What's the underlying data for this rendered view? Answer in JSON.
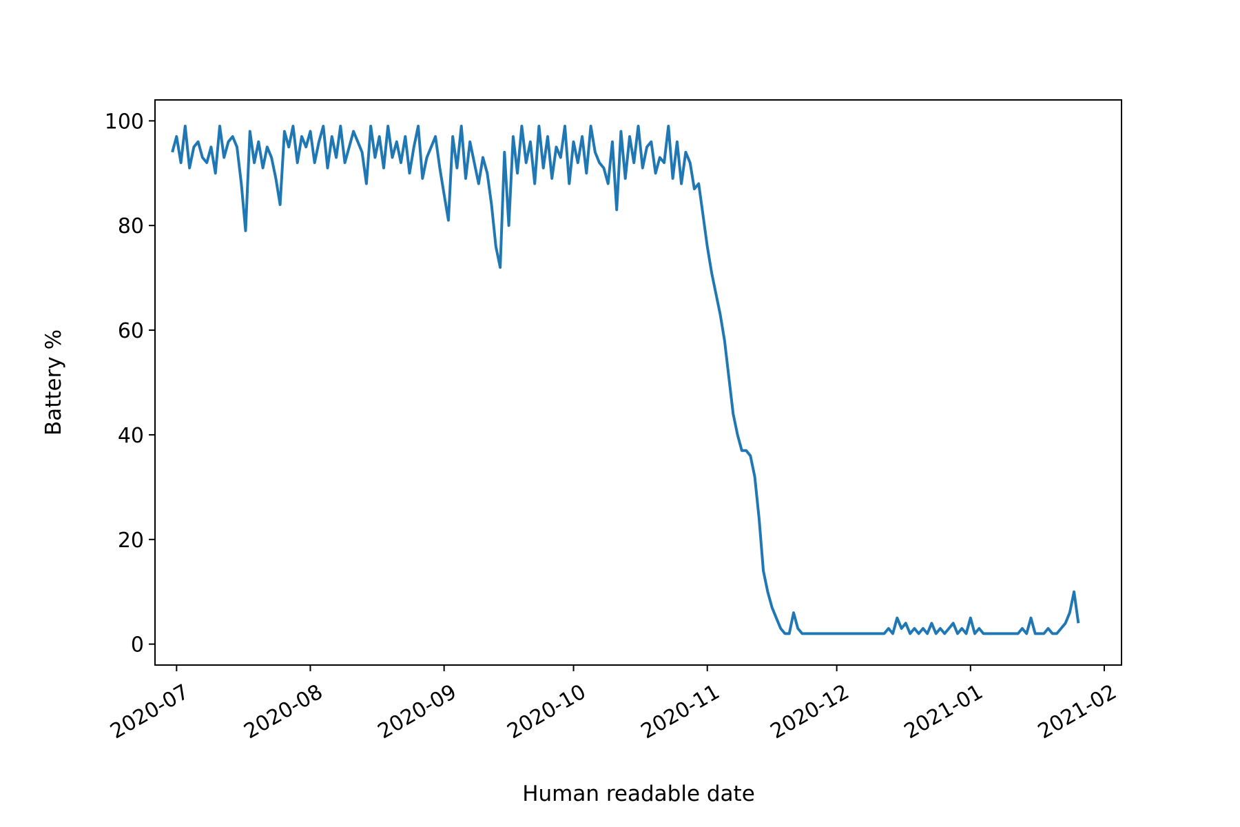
{
  "chart_data": {
    "type": "line",
    "title": "",
    "xlabel": "Human readable date",
    "ylabel": "Battery %",
    "xlim": [
      "2020-06-26",
      "2021-02-05"
    ],
    "ylim": [
      -4,
      104
    ],
    "grid": false,
    "legend": "none",
    "x_ticks": [
      "2020-07",
      "2020-08",
      "2020-09",
      "2020-10",
      "2020-11",
      "2020-12",
      "2021-01",
      "2021-02"
    ],
    "y_ticks": [
      "0",
      "20",
      "40",
      "60",
      "80",
      "100"
    ],
    "series": [
      {
        "color": "#1f77b4",
        "x": [
          "2020-06-30",
          "2020-07-01",
          "2020-07-02",
          "2020-07-03",
          "2020-07-04",
          "2020-07-05",
          "2020-07-06",
          "2020-07-07",
          "2020-07-08",
          "2020-07-09",
          "2020-07-10",
          "2020-07-11",
          "2020-07-12",
          "2020-07-13",
          "2020-07-14",
          "2020-07-15",
          "2020-07-16",
          "2020-07-17",
          "2020-07-18",
          "2020-07-19",
          "2020-07-20",
          "2020-07-21",
          "2020-07-22",
          "2020-07-23",
          "2020-07-24",
          "2020-07-25",
          "2020-07-26",
          "2020-07-27",
          "2020-07-28",
          "2020-07-29",
          "2020-07-30",
          "2020-07-31",
          "2020-08-01",
          "2020-08-02",
          "2020-08-03",
          "2020-08-04",
          "2020-08-05",
          "2020-08-06",
          "2020-08-07",
          "2020-08-08",
          "2020-08-09",
          "2020-08-10",
          "2020-08-11",
          "2020-08-12",
          "2020-08-13",
          "2020-08-14",
          "2020-08-15",
          "2020-08-16",
          "2020-08-17",
          "2020-08-18",
          "2020-08-19",
          "2020-08-20",
          "2020-08-21",
          "2020-08-22",
          "2020-08-23",
          "2020-08-24",
          "2020-08-25",
          "2020-08-26",
          "2020-08-27",
          "2020-08-28",
          "2020-08-29",
          "2020-08-30",
          "2020-08-31",
          "2020-09-01",
          "2020-09-02",
          "2020-09-03",
          "2020-09-04",
          "2020-09-05",
          "2020-09-06",
          "2020-09-07",
          "2020-09-08",
          "2020-09-09",
          "2020-09-10",
          "2020-09-11",
          "2020-09-12",
          "2020-09-13",
          "2020-09-14",
          "2020-09-15",
          "2020-09-16",
          "2020-09-17",
          "2020-09-18",
          "2020-09-19",
          "2020-09-20",
          "2020-09-21",
          "2020-09-22",
          "2020-09-23",
          "2020-09-24",
          "2020-09-25",
          "2020-09-26",
          "2020-09-27",
          "2020-09-28",
          "2020-09-29",
          "2020-09-30",
          "2020-10-01",
          "2020-10-02",
          "2020-10-03",
          "2020-10-04",
          "2020-10-05",
          "2020-10-06",
          "2020-10-07",
          "2020-10-08",
          "2020-10-09",
          "2020-10-10",
          "2020-10-11",
          "2020-10-12",
          "2020-10-13",
          "2020-10-14",
          "2020-10-15",
          "2020-10-16",
          "2020-10-17",
          "2020-10-18",
          "2020-10-19",
          "2020-10-20",
          "2020-10-21",
          "2020-10-22",
          "2020-10-23",
          "2020-10-24",
          "2020-10-25",
          "2020-10-26",
          "2020-10-27",
          "2020-10-28",
          "2020-10-29",
          "2020-10-30",
          "2020-10-31",
          "2020-11-01",
          "2020-11-02",
          "2020-11-03",
          "2020-11-04",
          "2020-11-05",
          "2020-11-06",
          "2020-11-07",
          "2020-11-08",
          "2020-11-09",
          "2020-11-10",
          "2020-11-11",
          "2020-11-12",
          "2020-11-13",
          "2020-11-14",
          "2020-11-15",
          "2020-11-16",
          "2020-11-17",
          "2020-11-18",
          "2020-11-19",
          "2020-11-20",
          "2020-11-21",
          "2020-11-22",
          "2020-11-23",
          "2020-11-24",
          "2020-11-25",
          "2020-11-26",
          "2020-11-27",
          "2020-11-28",
          "2020-11-29",
          "2020-11-30",
          "2020-12-01",
          "2020-12-02",
          "2020-12-03",
          "2020-12-04",
          "2020-12-05",
          "2020-12-06",
          "2020-12-07",
          "2020-12-08",
          "2020-12-09",
          "2020-12-10",
          "2020-12-11",
          "2020-12-12",
          "2020-12-13",
          "2020-12-14",
          "2020-12-15",
          "2020-12-16",
          "2020-12-17",
          "2020-12-18",
          "2020-12-19",
          "2020-12-20",
          "2020-12-21",
          "2020-12-22",
          "2020-12-23",
          "2020-12-24",
          "2020-12-25",
          "2020-12-26",
          "2020-12-27",
          "2020-12-28",
          "2020-12-29",
          "2020-12-30",
          "2020-12-31",
          "2021-01-01",
          "2021-01-02",
          "2021-01-03",
          "2021-01-04",
          "2021-01-05",
          "2021-01-06",
          "2021-01-07",
          "2021-01-08",
          "2021-01-09",
          "2021-01-10",
          "2021-01-11",
          "2021-01-12",
          "2021-01-13",
          "2021-01-14",
          "2021-01-15",
          "2021-01-16",
          "2021-01-17",
          "2021-01-18",
          "2021-01-19",
          "2021-01-20",
          "2021-01-21",
          "2021-01-22",
          "2021-01-23",
          "2021-01-24",
          "2021-01-25",
          "2021-01-26"
        ],
        "y": [
          94,
          97,
          92,
          99,
          91,
          95,
          96,
          93,
          92,
          95,
          90,
          99,
          93,
          96,
          97,
          95,
          88,
          79,
          98,
          92,
          96,
          91,
          95,
          93,
          89,
          84,
          98,
          95,
          99,
          92,
          97,
          95,
          98,
          92,
          96,
          99,
          91,
          97,
          93,
          99,
          92,
          95,
          98,
          96,
          94,
          88,
          99,
          93,
          97,
          91,
          99,
          93,
          96,
          92,
          97,
          90,
          95,
          99,
          89,
          93,
          95,
          97,
          91,
          86,
          81,
          97,
          91,
          99,
          89,
          96,
          92,
          88,
          93,
          90,
          84,
          76,
          72,
          94,
          80,
          97,
          90,
          99,
          92,
          96,
          88,
          99,
          91,
          97,
          89,
          95,
          93,
          99,
          88,
          96,
          92,
          97,
          90,
          99,
          94,
          92,
          91,
          88,
          96,
          83,
          98,
          89,
          97,
          92,
          99,
          91,
          95,
          96,
          90,
          93,
          92,
          99,
          89,
          96,
          88,
          94,
          92,
          87,
          88,
          82,
          76,
          71,
          67,
          63,
          58,
          51,
          44,
          40,
          37,
          37,
          36,
          32,
          24,
          14,
          10,
          7,
          5,
          3,
          2,
          2,
          6,
          3,
          2,
          2,
          2,
          2,
          2,
          2,
          2,
          2,
          2,
          2,
          2,
          2,
          2,
          2,
          2,
          2,
          2,
          2,
          2,
          2,
          3,
          2,
          5,
          3,
          4,
          2,
          3,
          2,
          3,
          2,
          4,
          2,
          3,
          2,
          3,
          4,
          2,
          3,
          2,
          5,
          2,
          3,
          2,
          2,
          2,
          2,
          2,
          2,
          2,
          2,
          2,
          3,
          2,
          5,
          2,
          2,
          2,
          3,
          2,
          2,
          3,
          4,
          6,
          10,
          4
        ]
      }
    ]
  }
}
